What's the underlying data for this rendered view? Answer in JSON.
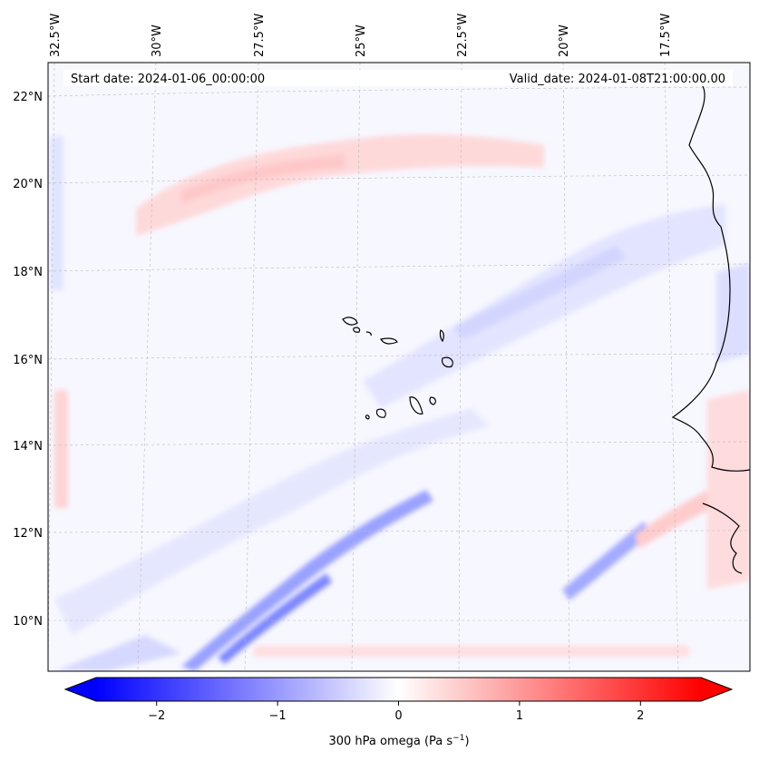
{
  "map": {
    "start_label": "Start date: 2024-01-06_00:00:00",
    "valid_label": "Valid_date: 2024-01-08T21:00:00.00",
    "lon_ticks": [
      "32.5°W",
      "30°W",
      "27.5°W",
      "25°W",
      "22.5°W",
      "20°W",
      "17.5°W"
    ],
    "lat_ticks": [
      "22°N",
      "20°N",
      "18°N",
      "16°N",
      "14°N",
      "12°N",
      "10°N"
    ],
    "lon_values": [
      -32.5,
      -30,
      -27.5,
      -25,
      -22.5,
      -20,
      -17.5
    ],
    "lat_values": [
      22,
      20,
      18,
      16,
      14,
      12,
      10
    ],
    "lon_range": [
      -33.3,
      -15.8
    ],
    "lat_range": [
      8.9,
      22.8
    ]
  },
  "colorbar": {
    "label": "300 hPa omega (Pa s",
    "label_unit_sup": "−1",
    "label_close": ")",
    "ticks": [
      "−2",
      "−1",
      "0",
      "1",
      "2"
    ],
    "tick_values": [
      -2,
      -1,
      0,
      1,
      2
    ],
    "range": [
      -2.5,
      2.5
    ],
    "neg_color": "#0000ff",
    "pos_color": "#ff0000"
  }
}
